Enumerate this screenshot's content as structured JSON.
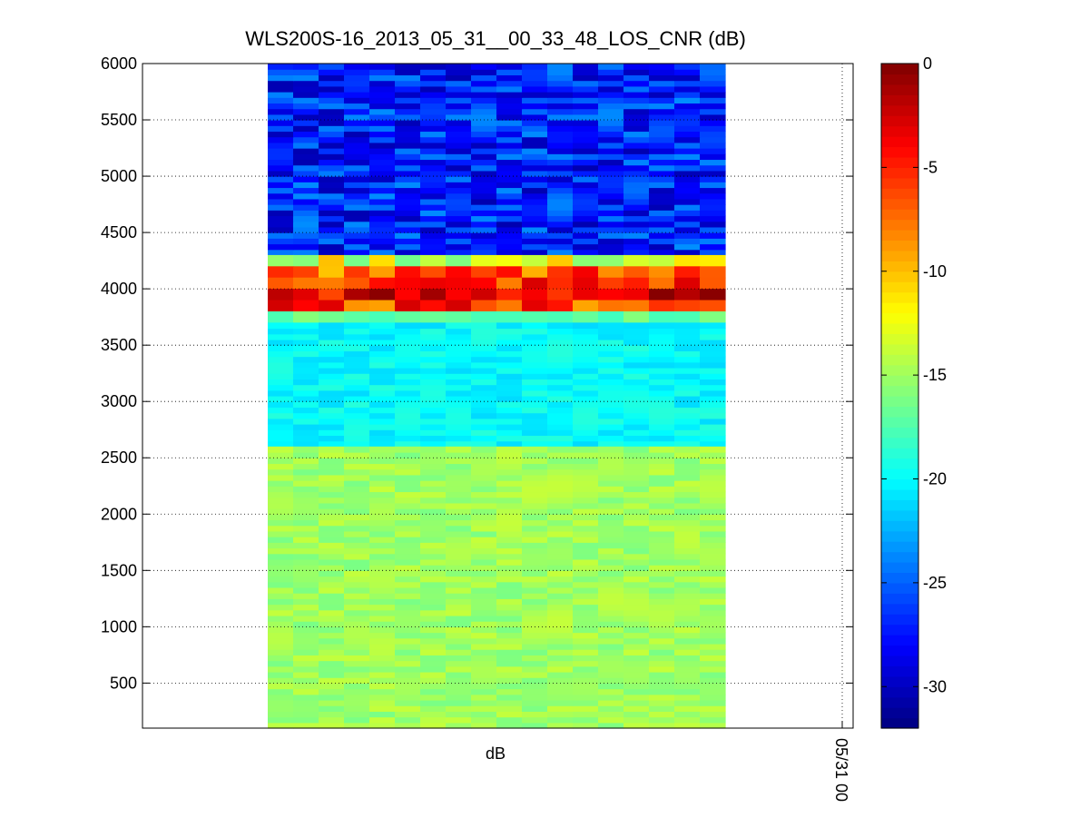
{
  "chart_data": {
    "type": "heatmap",
    "title": "WLS200S-16_2013_05_31__00_33_48_LOS_CNR (dB)",
    "xlabel": "dB",
    "ylabel": "",
    "x_tick_label": "05/31 00",
    "y_ticks": [
      "500",
      "1000",
      "1500",
      "2000",
      "2500",
      "3000",
      "3500",
      "4000",
      "4500",
      "5000",
      "5500",
      "6000"
    ],
    "ylim": [
      100,
      6000
    ],
    "grid": true,
    "colorbar": {
      "colormap": "jet",
      "range": [
        -32,
        0
      ],
      "ticks": [
        "0",
        "-5",
        "-10",
        "-15",
        "-20",
        "-25",
        "-30"
      ]
    },
    "columns": 18,
    "rows": [
      {
        "range": [
          4300,
          6000
        ],
        "value_dB": -27,
        "description_values": "blue, about -30 to -24 dB"
      },
      {
        "range": [
          4200,
          4300
        ],
        "value_dB": -13
      },
      {
        "range": [
          4100,
          4200
        ],
        "value_dB": -7
      },
      {
        "range": [
          4000,
          4100
        ],
        "value_dB": -5
      },
      {
        "range": [
          3900,
          4000
        ],
        "value_dB": -3
      },
      {
        "range": [
          3800,
          3900
        ],
        "value_dB": -6
      },
      {
        "range": [
          3700,
          3800
        ],
        "value_dB": -17
      },
      {
        "range": [
          2600,
          3700
        ],
        "value_dB": -20
      },
      {
        "range": [
          100,
          2600
        ],
        "value_dB": -15
      }
    ]
  }
}
